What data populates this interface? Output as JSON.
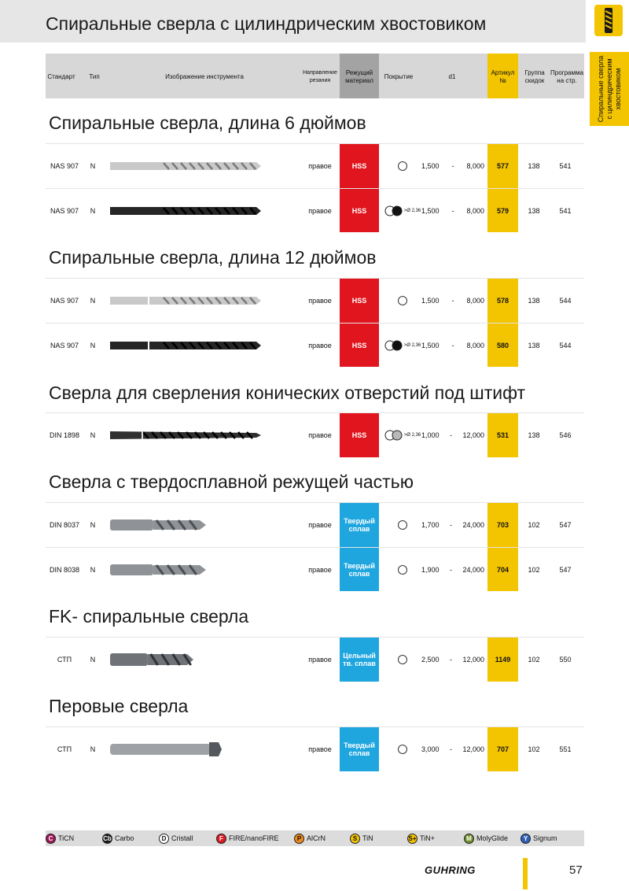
{
  "page_title": "Спиральные сверла с цилиндрическим хвостовиком",
  "side_tab": [
    "Спиральные сверла",
    "с цилиндрическим",
    "хвостовиком"
  ],
  "header": {
    "standard": "Стандарт",
    "type": "Тип",
    "tool_image": "Изображение инструмента",
    "direction": "Направление резания",
    "material": "Режущий материал",
    "coating": "Покрытие",
    "d1": "d1",
    "article": "Артикул №",
    "discount_group": "Группа скидок",
    "program": "Программа на стр."
  },
  "colors": {
    "hss": "#e0151e",
    "carbide": "#20a6df",
    "article": "#f3c400",
    "header": "#d7d7d7",
    "material_header": "#a3a3a3"
  },
  "sections": [
    {
      "title": "Спиральные сверла, длина 6 дюймов",
      "rows": [
        {
          "standard": "NAS 907",
          "type": "N",
          "tool_image": "drill-bright-6in",
          "direction": "правое",
          "material": "HSS",
          "coating": "none",
          "d1_from": "1,500",
          "d1_dash": "-",
          "d1_to": "8,000",
          "article": "577",
          "group": "138",
          "program": "541"
        },
        {
          "standard": "NAS 907",
          "type": "N",
          "tool_image": "drill-black-6in",
          "direction": "правое",
          "material": "HSS",
          "coating": "steam",
          "coating_note": ">Ø 2,36",
          "d1_from": "1,500",
          "d1_dash": "-",
          "d1_to": "8,000",
          "article": "579",
          "group": "138",
          "program": "541"
        }
      ]
    },
    {
      "title": "Спиральные сверла, длина 12 дюймов",
      "rows": [
        {
          "standard": "NAS 907",
          "type": "N",
          "tool_image": "drill-bright-12in",
          "direction": "правое",
          "material": "HSS",
          "coating": "none",
          "d1_from": "1,500",
          "d1_dash": "-",
          "d1_to": "8,000",
          "article": "578",
          "group": "138",
          "program": "544"
        },
        {
          "standard": "NAS 907",
          "type": "N",
          "tool_image": "drill-black-12in",
          "direction": "правое",
          "material": "HSS",
          "coating": "steam",
          "coating_note": ">Ø 2,36",
          "d1_from": "1,500",
          "d1_dash": "-",
          "d1_to": "8,000",
          "article": "580",
          "group": "138",
          "program": "544"
        }
      ]
    },
    {
      "title": "Сверла для сверления конических отверстий под штифт",
      "rows": [
        {
          "standard": "DIN 1898",
          "type": "N",
          "tool_image": "drill-taper-pin",
          "direction": "правое",
          "material": "HSS",
          "coating": "grey",
          "coating_note": ">Ø 2,36",
          "d1_from": "1,000",
          "d1_dash": "-",
          "d1_to": "12,000",
          "article": "531",
          "group": "138",
          "program": "546"
        }
      ]
    },
    {
      "title": "Сверла с твердосплавной режущей частью",
      "rows": [
        {
          "standard": "DIN 8037",
          "type": "N",
          "tool_image": "drill-carbide-tipped",
          "direction": "правое",
          "material": "Твердый сплав",
          "coating": "none",
          "d1_from": "1,700",
          "d1_dash": "-",
          "d1_to": "24,000",
          "article": "703",
          "group": "102",
          "program": "547"
        },
        {
          "standard": "DIN 8038",
          "type": "N",
          "tool_image": "drill-carbide-tipped-long",
          "direction": "правое",
          "material": "Твердый сплав",
          "coating": "none",
          "d1_from": "1,900",
          "d1_dash": "-",
          "d1_to": "24,000",
          "article": "704",
          "group": "102",
          "program": "547"
        }
      ]
    },
    {
      "title": "FK- спиральные сверла",
      "rows": [
        {
          "standard": "СТП",
          "type": "N",
          "tool_image": "drill-solid-carbide-fk",
          "direction": "правое",
          "material": "Цельный тв. сплав",
          "coating": "none",
          "d1_from": "2,500",
          "d1_dash": "-",
          "d1_to": "12,000",
          "article": "1149",
          "group": "102",
          "program": "550"
        }
      ]
    },
    {
      "title": "Перовые сверла",
      "rows": [
        {
          "standard": "СТП",
          "type": "N",
          "tool_image": "drill-spade",
          "direction": "правое",
          "material": "Твердый сплав",
          "coating": "none",
          "d1_from": "3,000",
          "d1_dash": "-",
          "d1_to": "12,000",
          "article": "707",
          "group": "102",
          "program": "551"
        }
      ]
    }
  ],
  "legend": [
    {
      "badge": "C",
      "label": "TiCN",
      "color": "#a0155a",
      "text_color": "#ffffff"
    },
    {
      "badge": "Cb",
      "label": "Carbo",
      "color": "#1a1a1a",
      "text_color": "#ffffff"
    },
    {
      "badge": "D",
      "label": "Cristall",
      "color": "#ffffff",
      "text_color": "#111111"
    },
    {
      "badge": "F",
      "label": "FIRE/nanoFIRE",
      "color": "#d81b24",
      "text_color": "#ffffff"
    },
    {
      "badge": "P",
      "label": "AlCrN",
      "color": "#f08a1c",
      "text_color": "#111111"
    },
    {
      "badge": "S",
      "label": "TiN",
      "color": "#f3c400",
      "text_color": "#111111"
    },
    {
      "badge": "S+",
      "label": "TiN+",
      "color": "#f3c400",
      "text_color": "#111111"
    },
    {
      "badge": "M",
      "label": "MolyGlide",
      "color": "#6f8f2a",
      "text_color": "#ffffff"
    },
    {
      "badge": "Y",
      "label": "Signum",
      "color": "#2e5fb7",
      "text_color": "#ffffff"
    }
  ],
  "brand": "GUHRING",
  "page_number": "57"
}
